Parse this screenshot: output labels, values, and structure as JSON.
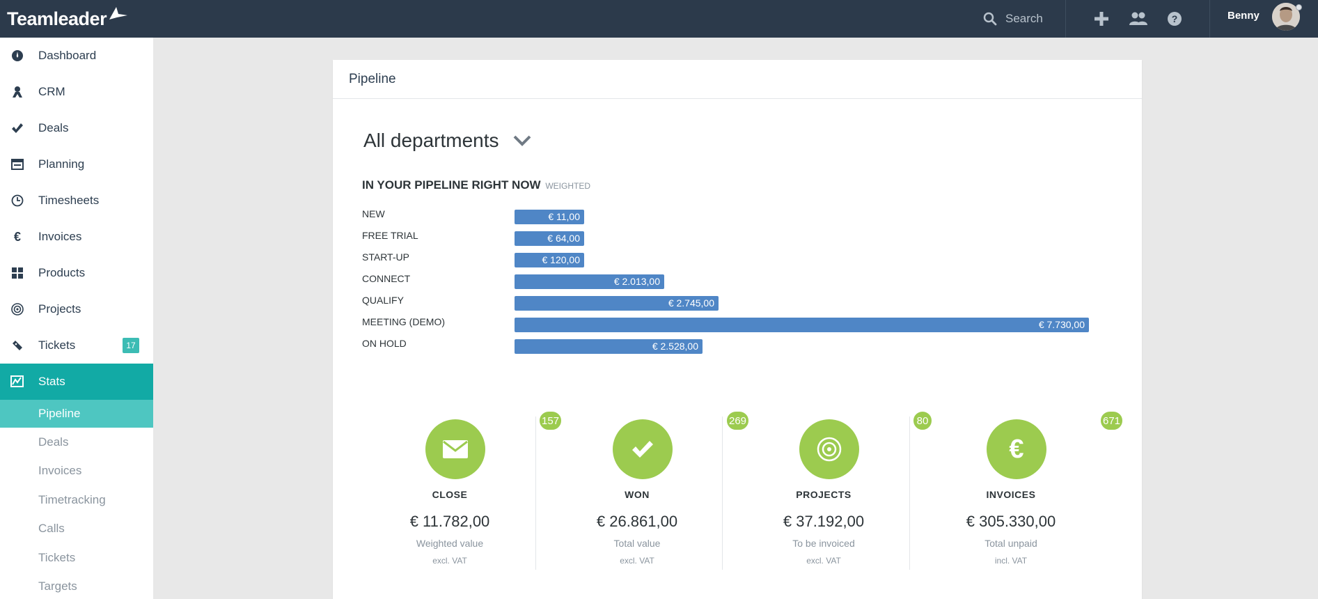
{
  "app": {
    "brand": "Teamleader",
    "search_label": "Search",
    "user_name": "Benny"
  },
  "sidebar": {
    "items": [
      {
        "label": "Dashboard",
        "icon": "dashboard-icon"
      },
      {
        "label": "CRM",
        "icon": "person-icon"
      },
      {
        "label": "Deals",
        "icon": "checkmark-icon"
      },
      {
        "label": "Planning",
        "icon": "calendar-icon"
      },
      {
        "label": "Timesheets",
        "icon": "clock-icon"
      },
      {
        "label": "Invoices",
        "icon": "euro-icon"
      },
      {
        "label": "Products",
        "icon": "grid-icon"
      },
      {
        "label": "Projects",
        "icon": "target-icon"
      },
      {
        "label": "Tickets",
        "icon": "ticket-icon",
        "badge": "17"
      },
      {
        "label": "Stats",
        "icon": "chart-icon",
        "active": true
      }
    ],
    "sub_items": [
      {
        "label": "Pipeline",
        "active": true
      },
      {
        "label": "Deals"
      },
      {
        "label": "Invoices"
      },
      {
        "label": "Timetracking"
      },
      {
        "label": "Calls"
      },
      {
        "label": "Tickets"
      },
      {
        "label": "Targets"
      }
    ]
  },
  "card": {
    "title": "Pipeline",
    "department": "All departments",
    "section_title": "IN YOUR PIPELINE RIGHT NOW",
    "section_subtitle": "WEIGHTED"
  },
  "chart_data": {
    "type": "bar",
    "orientation": "horizontal",
    "categories": [
      "NEW",
      "FREE TRIAL",
      "START-UP",
      "CONNECT",
      "QUALIFY",
      "MEETING (DEMO)",
      "ON HOLD"
    ],
    "values": [
      11,
      64,
      120,
      2013,
      2745,
      7730,
      2528
    ],
    "value_labels": [
      "€ 11,00",
      "€ 64,00",
      "€ 120,00",
      "€ 2.013,00",
      "€ 2.745,00",
      "€ 7.730,00",
      "€ 2.528,00"
    ],
    "bar_color": "#4f86c6",
    "grid": false
  },
  "stats": [
    {
      "title": "CLOSE",
      "count": "157",
      "value": "€ 11.782,00",
      "desc": "Weighted value",
      "vat": "excl. VAT",
      "icon": "envelope-icon"
    },
    {
      "title": "WON",
      "count": "269",
      "value": "€ 26.861,00",
      "desc": "Total value",
      "vat": "excl. VAT",
      "icon": "checkmark-icon"
    },
    {
      "title": "PROJECTS",
      "count": "80",
      "value": "€ 37.192,00",
      "desc": "To be invoiced",
      "vat": "excl. VAT",
      "icon": "target-icon"
    },
    {
      "title": "INVOICES",
      "count": "671",
      "value": "€ 305.330,00",
      "desc": "Total unpaid",
      "vat": "incl. VAT",
      "icon": "euro-icon"
    }
  ],
  "colors": {
    "topbar": "#2c3a4b",
    "accent": "#12aaa5",
    "accent_light": "#4ec6c1",
    "stat_green": "#9ccb4f",
    "bar_blue": "#4f86c6"
  }
}
